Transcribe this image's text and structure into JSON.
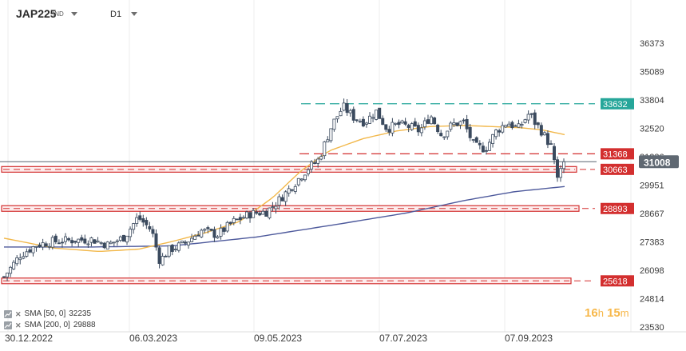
{
  "header": {
    "symbol": "JAP225",
    "symbol_suffix": "IND",
    "timeframe": "D1"
  },
  "indicators": [
    {
      "label": "SMA [50, 0]",
      "value": "32235",
      "color": "#f2b84b"
    },
    {
      "label": "SMA [200, 0]",
      "value": "29888",
      "color": "#4e5a9c"
    }
  ],
  "countdown": {
    "hours": "16",
    "hours_unit": "h",
    "minutes": "15",
    "minutes_unit": "m"
  },
  "colors": {
    "bull": "#ffffff",
    "bear": "#3b4a5e",
    "wick": "#3b4a5e",
    "resistance": "#d32f2f",
    "top_line": "#26a69a",
    "sma50": "#f2b84b",
    "sma200": "#4e5a9c",
    "price": "#5a6470",
    "grid": "#ececec"
  },
  "chart_data": {
    "type": "candlestick",
    "y_ticks": [
      "36373",
      "35089",
      "33804",
      "32520",
      "31236",
      "29951",
      "28667",
      "27383",
      "26098",
      "24814",
      "23530"
    ],
    "ylim": [
      23530,
      36373
    ],
    "x_ticks": [
      "30.12.2022",
      "06.03.2023",
      "09.05.2023",
      "07.07.2023",
      "07.09.2023"
    ],
    "current_price": "31008",
    "levels": [
      {
        "label": "33632",
        "value": 33632,
        "kind": "line",
        "color": "#26a69a"
      },
      {
        "label": "31368",
        "value": 31368,
        "kind": "line",
        "color": "#d32f2f"
      },
      {
        "label": "30663",
        "value": 30663,
        "kind": "zone",
        "color": "#d32f2f"
      },
      {
        "label": "28893",
        "value": 28893,
        "kind": "zone",
        "color": "#d32f2f"
      },
      {
        "label": "25618",
        "value": 25618,
        "kind": "zone",
        "color": "#d32f2f"
      }
    ],
    "sma50_knots": [
      [
        0,
        27550
      ],
      [
        0.09,
        27100
      ],
      [
        0.17,
        26950
      ],
      [
        0.24,
        27050
      ],
      [
        0.3,
        27400
      ],
      [
        0.36,
        27800
      ],
      [
        0.42,
        28300
      ],
      [
        0.48,
        29400
      ],
      [
        0.53,
        30600
      ],
      [
        0.58,
        31500
      ],
      [
        0.64,
        32050
      ],
      [
        0.7,
        32400
      ],
      [
        0.76,
        32600
      ],
      [
        0.82,
        32650
      ],
      [
        0.87,
        32600
      ],
      [
        0.92,
        32550
      ],
      [
        0.96,
        32450
      ],
      [
        1.0,
        32235
      ]
    ],
    "sma200_knots": [
      [
        0,
        27150
      ],
      [
        0.15,
        27150
      ],
      [
        0.3,
        27200
      ],
      [
        0.45,
        27600
      ],
      [
        0.6,
        28200
      ],
      [
        0.72,
        28700
      ],
      [
        0.82,
        29250
      ],
      [
        0.91,
        29650
      ],
      [
        1.0,
        29888
      ]
    ],
    "price_knots": [
      [
        0.0,
        25800
      ],
      [
        0.03,
        26800
      ],
      [
        0.06,
        27250
      ],
      [
        0.09,
        27400
      ],
      [
        0.12,
        27450
      ],
      [
        0.16,
        27500
      ],
      [
        0.19,
        27250
      ],
      [
        0.22,
        27600
      ],
      [
        0.245,
        28500
      ],
      [
        0.27,
        27900
      ],
      [
        0.285,
        26500
      ],
      [
        0.3,
        27000
      ],
      [
        0.33,
        27300
      ],
      [
        0.36,
        27900
      ],
      [
        0.39,
        27700
      ],
      [
        0.42,
        28300
      ],
      [
        0.45,
        28650
      ],
      [
        0.48,
        28750
      ],
      [
        0.5,
        29200
      ],
      [
        0.53,
        30000
      ],
      [
        0.555,
        30700
      ],
      [
        0.575,
        31100
      ],
      [
        0.6,
        32700
      ],
      [
        0.62,
        33500
      ],
      [
        0.64,
        33000
      ],
      [
        0.66,
        32800
      ],
      [
        0.68,
        33300
      ],
      [
        0.7,
        32500
      ],
      [
        0.72,
        32700
      ],
      [
        0.74,
        32600
      ],
      [
        0.76,
        32400
      ],
      [
        0.78,
        33100
      ],
      [
        0.8,
        32200
      ],
      [
        0.82,
        32700
      ],
      [
        0.84,
        32800
      ],
      [
        0.86,
        31700
      ],
      [
        0.88,
        31600
      ],
      [
        0.9,
        32400
      ],
      [
        0.92,
        32800
      ],
      [
        0.94,
        32500
      ],
      [
        0.96,
        33200
      ],
      [
        0.97,
        32800
      ],
      [
        0.98,
        32500
      ],
      [
        0.99,
        32100
      ],
      [
        1.0,
        31700
      ]
    ],
    "tail": [
      31100,
      30300,
      30700,
      31008
    ]
  }
}
